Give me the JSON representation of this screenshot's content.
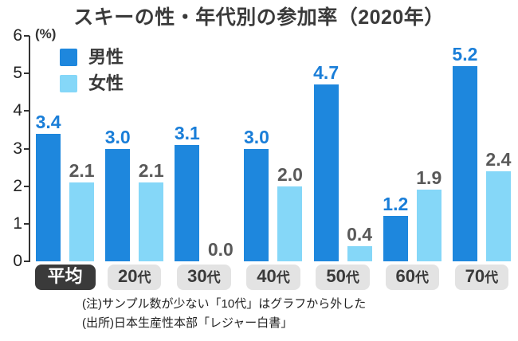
{
  "title": "スキーの性・年代別の参加率（2020年）",
  "y_axis": {
    "unit_label": "(%)",
    "ticks": [
      6,
      5,
      4,
      3,
      2,
      1,
      0
    ],
    "max": 6
  },
  "legend": [
    {
      "label": "男性",
      "color": "#1e87dd"
    },
    {
      "label": "女性",
      "color": "#85d7f8"
    }
  ],
  "chart_data": {
    "type": "bar",
    "title": "スキーの性・年代別の参加率（2020年）",
    "categories": [
      "平均",
      "20代",
      "30代",
      "40代",
      "50代",
      "60代",
      "70代"
    ],
    "series": [
      {
        "name": "男性",
        "color": "#1e87dd",
        "label_color": "#1a7ed8",
        "values": [
          3.4,
          3.0,
          3.1,
          3.0,
          4.7,
          1.2,
          5.2
        ]
      },
      {
        "name": "女性",
        "color": "#85d7f8",
        "label_color": "#595959",
        "values": [
          2.1,
          2.1,
          0.0,
          2.0,
          0.4,
          1.9,
          2.4
        ]
      }
    ],
    "xlabel": "",
    "ylabel": "(%)",
    "ylim": [
      0,
      6
    ],
    "grid": false,
    "legend_position": "top-left",
    "value_labels_decimals": 1
  },
  "x_labels": [
    {
      "text": "平均",
      "suffix": "",
      "highlight": true
    },
    {
      "text": "20",
      "suffix": "代",
      "highlight": false
    },
    {
      "text": "30",
      "suffix": "代",
      "highlight": false
    },
    {
      "text": "40",
      "suffix": "代",
      "highlight": false
    },
    {
      "text": "50",
      "suffix": "代",
      "highlight": false
    },
    {
      "text": "60",
      "suffix": "代",
      "highlight": false
    },
    {
      "text": "70",
      "suffix": "代",
      "highlight": false
    }
  ],
  "notes": [
    "(注)サンプル数が少ない「10代」はグラフから外した",
    "(出所)日本生産性本部「レジャー白書」"
  ]
}
